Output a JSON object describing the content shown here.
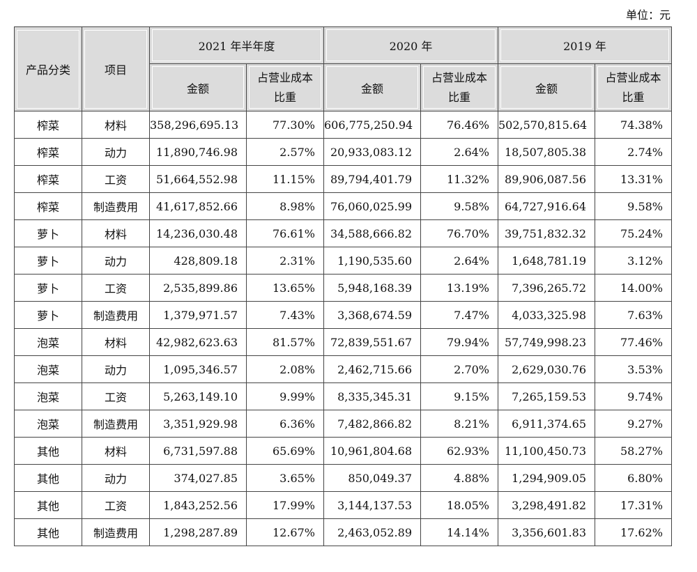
{
  "unit_note": "单位：元",
  "header": {
    "category": "产品分类",
    "item": "项目",
    "periods": [
      "2021 年半年度",
      "2020 年",
      "2019 年"
    ],
    "amount": "金额",
    "ratio_line1": "占营业成本",
    "ratio_line2": "比重"
  },
  "rows": [
    {
      "category": "榨菜",
      "item": "材料",
      "cells": [
        "358,296,695.13",
        "77.30%",
        "606,775,250.94",
        "76.46%",
        "502,570,815.64",
        "74.38%"
      ]
    },
    {
      "category": "榨菜",
      "item": "动力",
      "cells": [
        "11,890,746.98",
        "2.57%",
        "20,933,083.12",
        "2.64%",
        "18,507,805.38",
        "2.74%"
      ]
    },
    {
      "category": "榨菜",
      "item": "工资",
      "cells": [
        "51,664,552.98",
        "11.15%",
        "89,794,401.79",
        "11.32%",
        "89,906,087.56",
        "13.31%"
      ]
    },
    {
      "category": "榨菜",
      "item": "制造费用",
      "cells": [
        "41,617,852.66",
        "8.98%",
        "76,060,025.99",
        "9.58%",
        "64,727,916.64",
        "9.58%"
      ]
    },
    {
      "category": "萝卜",
      "item": "材料",
      "cells": [
        "14,236,030.48",
        "76.61%",
        "34,588,666.82",
        "76.70%",
        "39,751,832.32",
        "75.24%"
      ]
    },
    {
      "category": "萝卜",
      "item": "动力",
      "cells": [
        "428,809.18",
        "2.31%",
        "1,190,535.60",
        "2.64%",
        "1,648,781.19",
        "3.12%"
      ]
    },
    {
      "category": "萝卜",
      "item": "工资",
      "cells": [
        "2,535,899.86",
        "13.65%",
        "5,948,168.39",
        "13.19%",
        "7,396,265.72",
        "14.00%"
      ]
    },
    {
      "category": "萝卜",
      "item": "制造费用",
      "cells": [
        "1,379,971.57",
        "7.43%",
        "3,368,674.59",
        "7.47%",
        "4,033,325.98",
        "7.63%"
      ]
    },
    {
      "category": "泡菜",
      "item": "材料",
      "cells": [
        "42,982,623.63",
        "81.57%",
        "72,839,551.67",
        "79.94%",
        "57,749,998.23",
        "77.46%"
      ]
    },
    {
      "category": "泡菜",
      "item": "动力",
      "cells": [
        "1,095,346.57",
        "2.08%",
        "2,462,715.66",
        "2.70%",
        "2,629,030.76",
        "3.53%"
      ]
    },
    {
      "category": "泡菜",
      "item": "工资",
      "cells": [
        "5,263,149.10",
        "9.99%",
        "8,335,345.31",
        "9.15%",
        "7,265,159.53",
        "9.74%"
      ]
    },
    {
      "category": "泡菜",
      "item": "制造费用",
      "cells": [
        "3,351,929.98",
        "6.36%",
        "7,482,866.82",
        "8.21%",
        "6,911,374.65",
        "9.27%"
      ]
    },
    {
      "category": "其他",
      "item": "材料",
      "cells": [
        "6,731,597.88",
        "65.69%",
        "10,961,804.68",
        "62.93%",
        "11,100,450.73",
        "58.27%"
      ]
    },
    {
      "category": "其他",
      "item": "动力",
      "cells": [
        "374,027.85",
        "3.65%",
        "850,049.37",
        "4.88%",
        "1,294,909.05",
        "6.80%"
      ]
    },
    {
      "category": "其他",
      "item": "工资",
      "cells": [
        "1,843,252.56",
        "17.99%",
        "3,144,137.53",
        "18.05%",
        "3,298,491.82",
        "17.31%"
      ]
    },
    {
      "category": "其他",
      "item": "制造费用",
      "cells": [
        "1,298,287.89",
        "12.67%",
        "2,463,052.89",
        "14.14%",
        "3,356,601.83",
        "17.62%"
      ]
    }
  ]
}
